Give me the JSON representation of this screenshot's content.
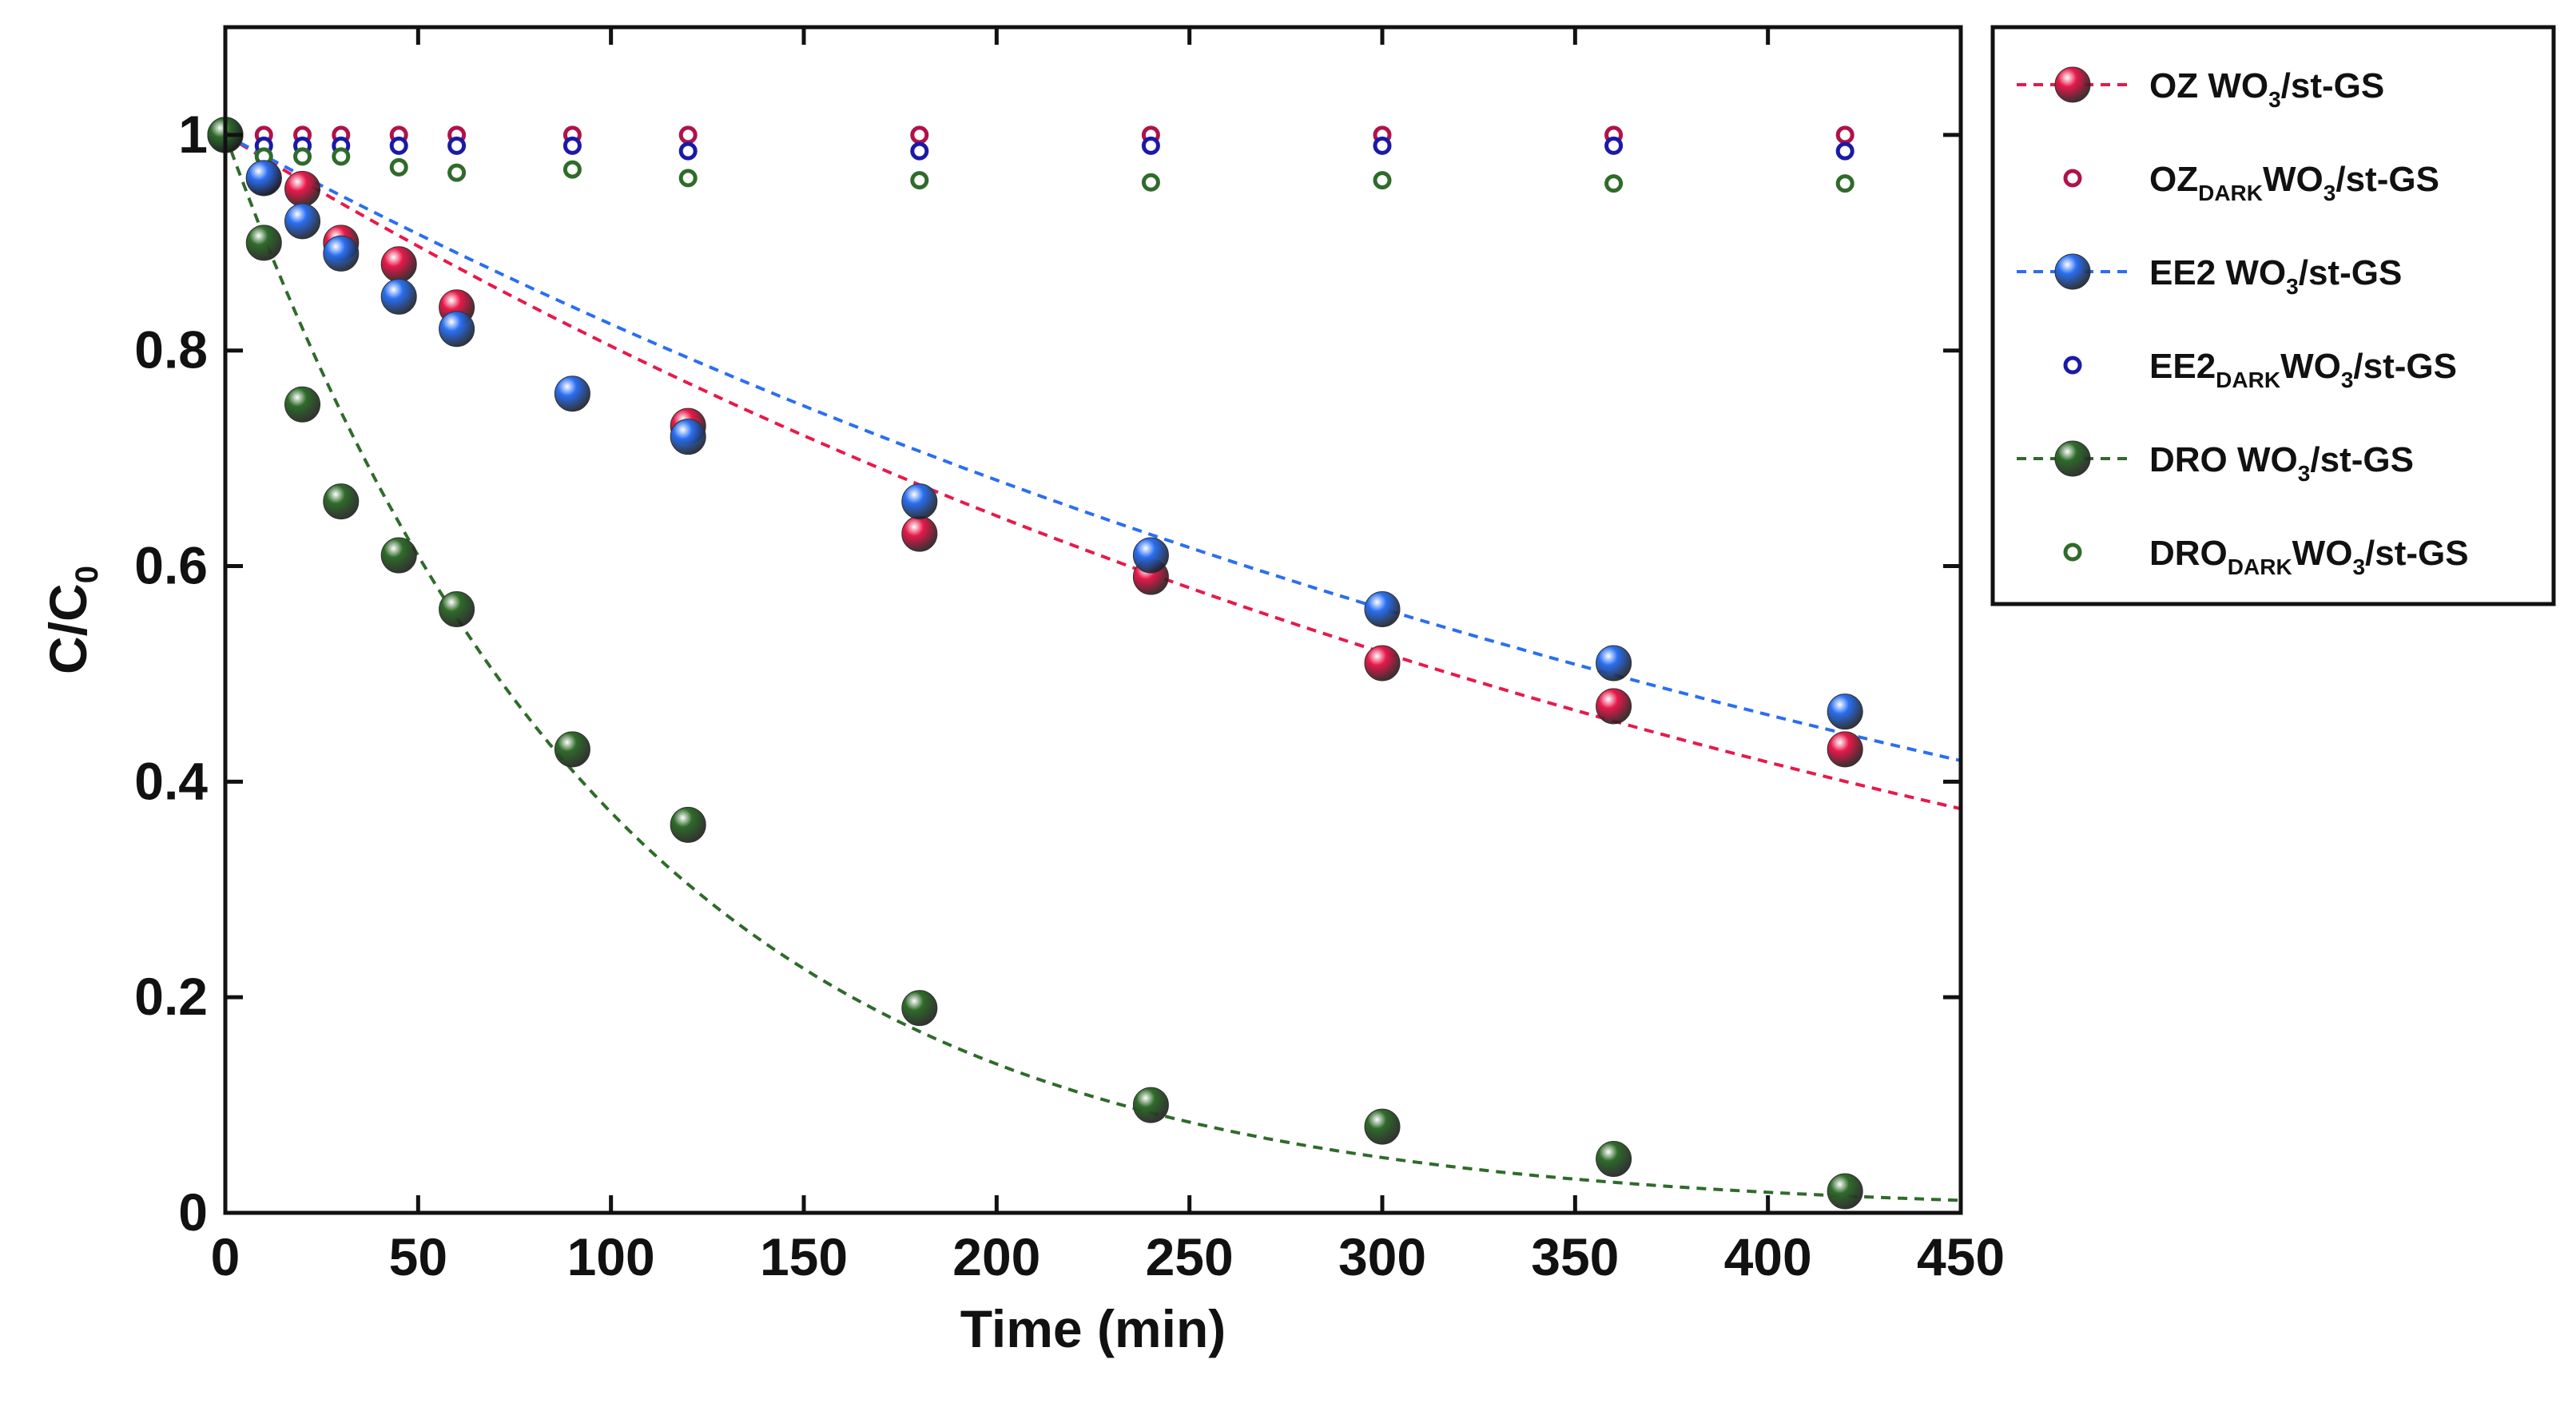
{
  "chart_data": {
    "type": "scatter",
    "xlabel": "Time (min)",
    "ylabel_main": "C/C",
    "ylabel_sub": "0",
    "xlim": [
      0,
      450
    ],
    "ylim": [
      0,
      1.1
    ],
    "xticks": [
      0,
      50,
      100,
      150,
      200,
      250,
      300,
      350,
      400,
      450
    ],
    "yticks": [
      0,
      0.2,
      0.4,
      0.6,
      0.8,
      1
    ],
    "xtick_labels": [
      "0",
      "50",
      "100",
      "150",
      "200",
      "250",
      "300",
      "350",
      "400",
      "450"
    ],
    "ytick_labels": [
      "0",
      "0.2",
      "0.4",
      "0.6",
      "0.8",
      "1"
    ],
    "grid": false,
    "legend_position": "outside-right",
    "series": [
      {
        "name": "OZ WO3/st-GS",
        "legend": {
          "pre": "OZ WO",
          "sub1": "3",
          "mid": "/st-GS",
          "sub2": "",
          "post": ""
        },
        "style": "filled",
        "color": "#e8194a",
        "x": [
          0,
          10,
          20,
          30,
          45,
          60,
          120,
          180,
          240,
          300,
          360,
          420
        ],
        "y": [
          1.0,
          0.96,
          0.95,
          0.9,
          0.88,
          0.84,
          0.73,
          0.63,
          0.59,
          0.51,
          0.47,
          0.43
        ]
      },
      {
        "name": "OZ DARK WO3/st-GS",
        "legend": {
          "pre": "OZ",
          "sub1": "DARK",
          "mid": "WO",
          "sub2": "3",
          "post": "/st-GS"
        },
        "style": "open",
        "color": "#b0124a",
        "x": [
          10,
          20,
          30,
          45,
          60,
          90,
          120,
          180,
          240,
          300,
          360,
          420
        ],
        "y": [
          1.0,
          1.0,
          1.0,
          1.0,
          1.0,
          1.0,
          1.0,
          1.0,
          1.0,
          1.0,
          1.0,
          1.0
        ]
      },
      {
        "name": "EE2 WO3/st-GS",
        "legend": {
          "pre": "EE2 WO",
          "sub1": "3",
          "mid": "/st-GS",
          "sub2": "",
          "post": ""
        },
        "style": "filled",
        "color": "#2a6ff2",
        "x": [
          0,
          10,
          20,
          30,
          45,
          60,
          90,
          120,
          180,
          240,
          300,
          360,
          420
        ],
        "y": [
          1.0,
          0.96,
          0.92,
          0.89,
          0.85,
          0.82,
          0.76,
          0.72,
          0.66,
          0.61,
          0.56,
          0.51,
          0.465
        ]
      },
      {
        "name": "EE2 DARK WO3/st-GS",
        "legend": {
          "pre": "EE2",
          "sub1": "DARK",
          "mid": "WO",
          "sub2": "3",
          "post": "/st-GS"
        },
        "style": "open",
        "color": "#1a1aa6",
        "x": [
          10,
          20,
          30,
          45,
          60,
          90,
          120,
          180,
          240,
          300,
          360,
          420
        ],
        "y": [
          0.99,
          0.99,
          0.99,
          0.99,
          0.99,
          0.99,
          0.985,
          0.985,
          0.99,
          0.99,
          0.99,
          0.985
        ]
      },
      {
        "name": "DRO WO3/st-GS",
        "legend": {
          "pre": "DRO WO",
          "sub1": "3",
          "mid": "/st-GS",
          "sub2": "",
          "post": ""
        },
        "style": "filled",
        "color": "#2f6b2a",
        "x": [
          0,
          10,
          20,
          30,
          45,
          60,
          90,
          120,
          180,
          240,
          300,
          360,
          420
        ],
        "y": [
          1.0,
          0.9,
          0.75,
          0.66,
          0.61,
          0.56,
          0.43,
          0.36,
          0.19,
          0.1,
          0.08,
          0.05,
          0.02
        ]
      },
      {
        "name": "DRO DARK WO3/st-GS",
        "legend": {
          "pre": "DRO",
          "sub1": "DARK",
          "mid": "WO",
          "sub2": "3",
          "post": "/st-GS"
        },
        "style": "open",
        "color": "#2f6b2a",
        "x": [
          10,
          20,
          30,
          45,
          60,
          90,
          120,
          180,
          240,
          300,
          360,
          420
        ],
        "y": [
          0.98,
          0.98,
          0.98,
          0.97,
          0.965,
          0.968,
          0.96,
          0.958,
          0.956,
          0.958,
          0.955,
          0.955
        ]
      }
    ],
    "fits": [
      {
        "series": "OZ WO3/st-GS",
        "model": "exponential",
        "k": 0.00218,
        "color": "#e8194a"
      },
      {
        "series": "EE2 WO3/st-GS",
        "model": "exponential",
        "k": 0.00193,
        "color": "#2a6ff2"
      },
      {
        "series": "DRO WO3/st-GS",
        "model": "exponential",
        "k": 0.0099,
        "color": "#2f6b2a"
      }
    ]
  }
}
